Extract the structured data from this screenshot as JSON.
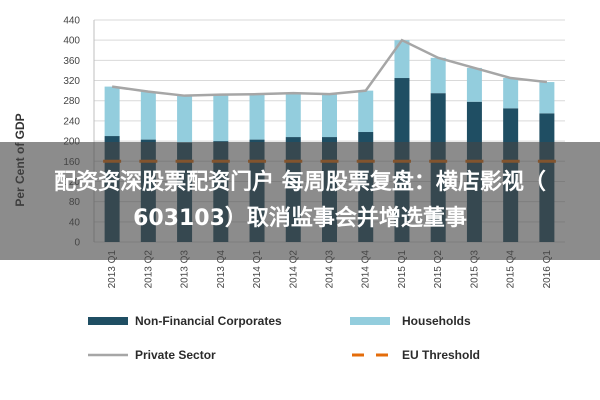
{
  "banner": {
    "line1": "配资资深股票配资门户 每周股票复盘：横店影视（",
    "line2": "603103）取消监事会并增选董事"
  },
  "chart_data": {
    "type": "bar",
    "ylabel": "Per Cent of GDP",
    "ylim": [
      0,
      440
    ],
    "yticks": [
      0,
      40,
      80,
      120,
      160,
      200,
      240,
      280,
      320,
      360,
      400,
      440
    ],
    "grid": true,
    "legend_placement": "bottom",
    "categories": [
      "2013 Q1",
      "2013 Q2",
      "2013 Q3",
      "2013 Q4",
      "2014 Q1",
      "2014 Q2",
      "2014 Q3",
      "2014 Q4",
      "2015 Q1",
      "2015 Q2",
      "2015 Q3",
      "2015 Q4",
      "2016 Q1"
    ],
    "stacked": true,
    "series": [
      {
        "name": "Non-Financial Corporates",
        "kind": "bar",
        "color": "#1f4e63",
        "values": [
          210,
          203,
          197,
          200,
          203,
          208,
          208,
          218,
          325,
          295,
          278,
          265,
          255
        ]
      },
      {
        "name": "Households",
        "kind": "bar",
        "color": "#93cddd",
        "values": [
          98,
          95,
          93,
          92,
          90,
          87,
          85,
          82,
          75,
          70,
          67,
          60,
          62
        ]
      },
      {
        "name": "Private Sector",
        "kind": "line",
        "color": "#a6a6a6",
        "values": [
          308,
          298,
          290,
          292,
          293,
          295,
          293,
          300,
          400,
          365,
          345,
          325,
          317
        ]
      },
      {
        "name": "EU Threshold",
        "kind": "line",
        "dashed": true,
        "color": "#e46c0a",
        "values": [
          160,
          160,
          160,
          160,
          160,
          160,
          160,
          160,
          160,
          160,
          160,
          160,
          160
        ]
      }
    ]
  }
}
